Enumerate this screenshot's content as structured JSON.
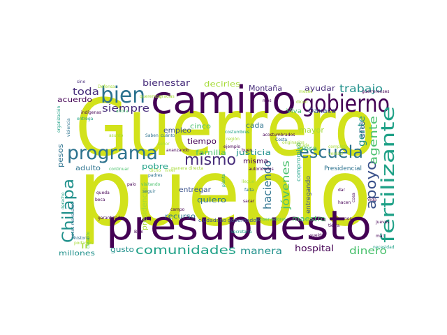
{
  "palette": {
    "yellow": "#d2e21b",
    "lime": "#a5db36",
    "green": "#4ac16d",
    "teal": "#1fa187",
    "cyan": "#21918c",
    "blue": "#2c728e",
    "indigo": "#3b528b",
    "purple": "#472d7b",
    "dark": "#440154"
  },
  "words": {
    "guerrero": "Guerrero",
    "pueblo": "pueblo",
    "presupuesto": "presupuesto",
    "camino": "camino",
    "gobierno": "gobierno",
    "programa": "programa",
    "bien": "bien",
    "escuela": "escuela",
    "fertilizante": "fertilizante",
    "apoyo": "apoyo",
    "chilapa": "Chilapa",
    "mismo": "mismo",
    "comunidades": "comunidades",
    "agente": "agente",
    "jovenes": "jóvenes",
    "haciendo": "haciendo",
    "trabajo": "trabajo",
    "toda": "toda",
    "siempre": "siempre",
    "bienestar": "bienestar",
    "decirles": "decirles",
    "montana": "Montaña",
    "ayudar": "ayudar",
    "manera": "manera",
    "hospital": "hospital",
    "dinero": "dinero",
    "maestro": "maestro",
    "justicia": "justicia",
    "misma": "misma",
    "cada": "cada",
    "mayor": "mayor",
    "anos": "años",
    "oaxaca": "Oaxaca",
    "viva": "Viva",
    "obra": "obra",
    "gente": "gente",
    "pesos": "pesos",
    "acuerdo": "acuerdo",
    "adulto": "adulto",
    "tiempo": "tiempo",
    "empleo": "empleo",
    "familia": "familia",
    "pobre": "pobre",
    "quiero": "quiero",
    "entregar": "entregar",
    "recurso": "recurso",
    "presidencia": "presidencia",
    "gusto": "gusto",
    "ir": "ir",
    "millones": "millones",
    "cinco": "cinco",
    "presidencial": "Presidencial",
    "entregando": "entregando",
    "compromiso": "compromiso",
    "ciudadano": "ciudadano",
    "gobernador": "gobernador",
    "sino": "sino",
    "indigenas": "indígenas",
    "entrega": "entrega",
    "organizacion": "organización",
    "violencia": "violencia",
    "ahora": "ahora",
    "asunto": "asunto",
    "saben": "Saben",
    "cuanto": "cuánto",
    "costumbres": "costumbres",
    "acostumbrados": "acostumbrados",
    "region": "región",
    "costa": "Costa",
    "ejemplo": "ejemplo",
    "buen": "buen",
    "avanzando": "avanzando",
    "autoridades": "autoridades",
    "continuar": "continuar",
    "padres": "padres",
    "visitando": "visitando",
    "seguir": "seguir",
    "queda": "queda",
    "beca": "beca",
    "derecho": "derecho",
    "mensuales": "pesos mensuales",
    "garantizado": "garantizado",
    "historia": "historia",
    "podamos": "podamos",
    "creando": "creando",
    "bien2": "Bien",
    "nivel": "nivel",
    "secretaria": "Secretaría",
    "sueldo": "sueldo",
    "tierra": "tierra",
    "necesidad": "necesidad",
    "mal": "mal",
    "jueves": "jueves",
    "vida": "Vida",
    "hacen": "hacen",
    "cosa": "cosa",
    "dar": "dar",
    "alumnos": "alumnos",
    "llegue": "llegue",
    "sacar": "sacar",
    "falta": "falta",
    "planta": "planta",
    "campo": "campo",
    "palo": "palo",
    "dicho": "dicho",
    "defensa": "Defensa",
    "mes": "mes",
    "dicen": "dicen",
    "completo": "completo",
    "verdad": "verdad",
    "originarios": "originarios",
    "guerrerenses": "guerrerenses",
    "conservadores": "conservadores",
    "queremos": "queremos",
    "gracias": "gracias",
    "mes2": "meses",
    "deuda": "deuda",
    "hay": "hay",
    "paz": "paz",
    "conozco": "conozco",
    "manera_directa": "manera directa",
    "senor": "señor"
  }
}
